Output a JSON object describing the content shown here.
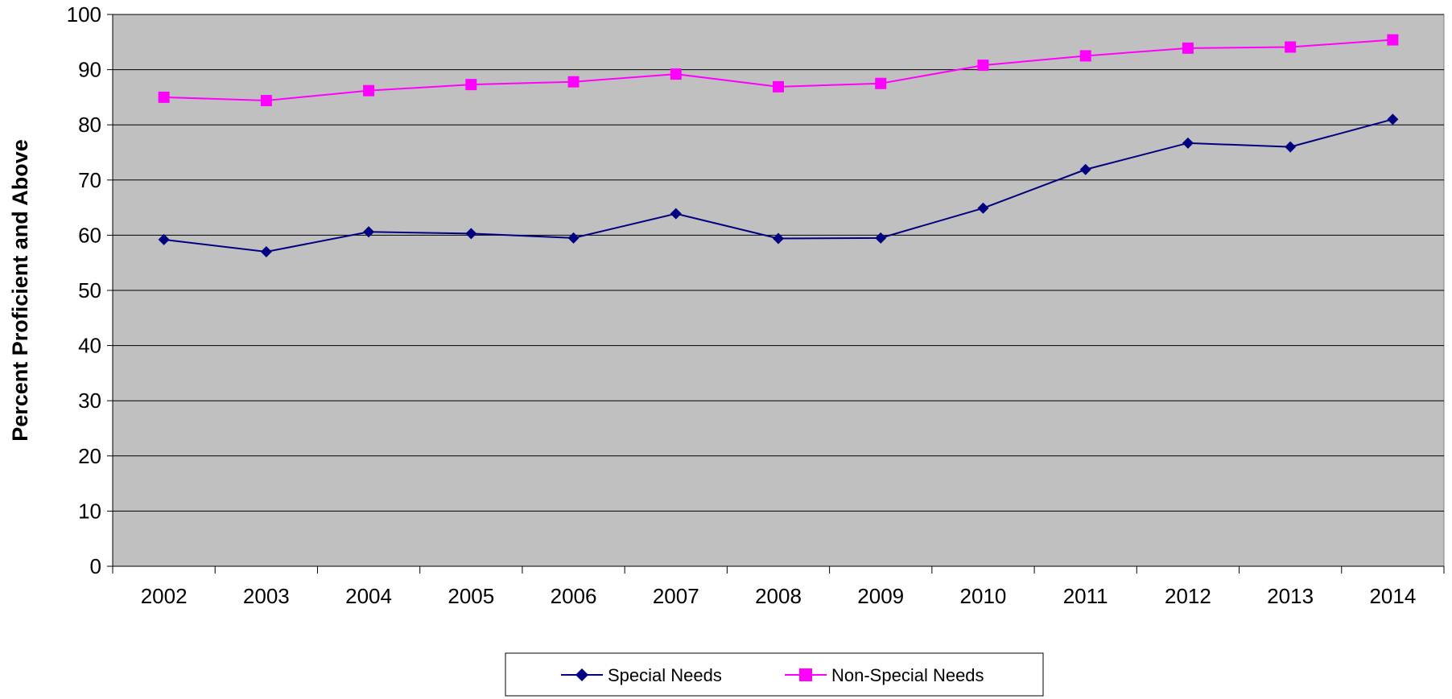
{
  "chart_data": {
    "type": "line",
    "title": "",
    "xlabel": "",
    "ylabel": "Percent Proficient and Above",
    "ylim": [
      0,
      100
    ],
    "yticks": [
      0,
      10,
      20,
      30,
      40,
      50,
      60,
      70,
      80,
      90,
      100
    ],
    "grid": true,
    "legend_position": "bottom",
    "categories": [
      "2002",
      "2003",
      "2004",
      "2005",
      "2006",
      "2007",
      "2008",
      "2009",
      "2010",
      "2011",
      "2012",
      "2013",
      "2014"
    ],
    "series": [
      {
        "name": "Special Needs",
        "color": "#000080",
        "marker": "diamond",
        "values": [
          59.2,
          57.0,
          60.6,
          60.3,
          59.5,
          63.9,
          59.4,
          59.5,
          64.9,
          71.9,
          76.7,
          76.0,
          81.0
        ]
      },
      {
        "name": "Non-Special Needs",
        "color": "#FF00FF",
        "marker": "square",
        "values": [
          85.0,
          84.4,
          86.2,
          87.3,
          87.8,
          89.2,
          86.9,
          87.5,
          90.8,
          92.5,
          93.9,
          94.1,
          95.4
        ]
      }
    ],
    "plot_background": "#C0C0C0"
  }
}
